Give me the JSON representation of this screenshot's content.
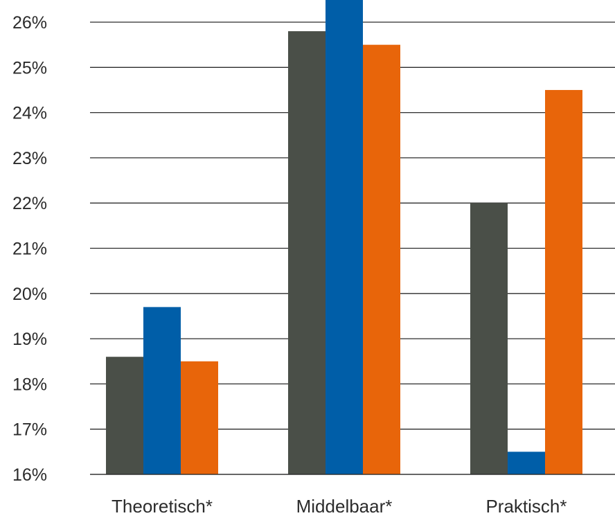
{
  "colors": {
    "series": [
      "#4a4f48",
      "#005ea8",
      "#e8650a"
    ],
    "gridline": "#2b2b2b",
    "text": "#2b2b2b"
  },
  "chart_data": {
    "type": "bar",
    "categories": [
      "Theoretisch*",
      "Middelbaar*",
      "Praktisch*"
    ],
    "series": [
      {
        "values": [
          18.6,
          25.8,
          22.0
        ]
      },
      {
        "values": [
          19.7,
          26.8,
          16.5
        ]
      },
      {
        "values": [
          18.5,
          25.5,
          24.5
        ]
      }
    ],
    "yticks": [
      "16%",
      "17%",
      "18%",
      "19%",
      "20%",
      "21%",
      "22%",
      "23%",
      "24%",
      "25%",
      "26%"
    ],
    "ylim": [
      16,
      26.6
    ],
    "grid": true,
    "legend": "none",
    "title": "",
    "xlabel": "",
    "ylabel": ""
  }
}
